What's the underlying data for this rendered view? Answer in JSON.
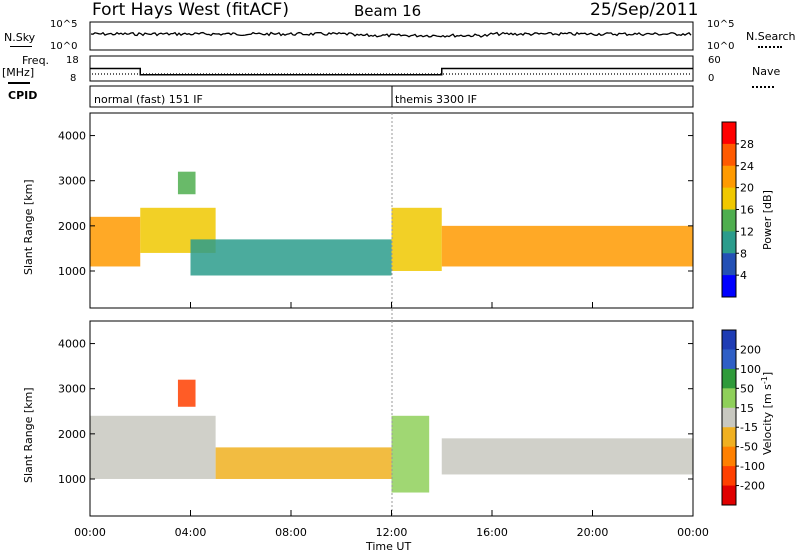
{
  "header": {
    "station": "Fort Hays West (fitACF)",
    "beam": "Beam 16",
    "date": "25/Sep/2011"
  },
  "left_labels": {
    "nsky": "N.Sky",
    "freq": "Freq.",
    "freq_unit": "[MHz]",
    "cpid": "CPID"
  },
  "right_labels": {
    "nsearch": "N.Search",
    "nave": "Nave"
  },
  "noise_axis": {
    "left_ticks": [
      "10^5",
      "10^0"
    ],
    "right_ticks": [
      "10^5",
      "10^0"
    ]
  },
  "freq_axis": {
    "left_ticks": [
      "18",
      "8"
    ],
    "right_ticks": [
      "60",
      "0"
    ]
  },
  "cpid_modes": [
    {
      "name": "normal (fast) 151 IF",
      "start_hour": 0,
      "end_hour": 12
    },
    {
      "name": "themis 3300 IF",
      "start_hour": 12,
      "end_hour": 24
    }
  ],
  "x_axis": {
    "label": "Time UT",
    "ticks": [
      "00:00",
      "04:00",
      "08:00",
      "12:00",
      "16:00",
      "20:00",
      "00:00"
    ]
  },
  "power_panel": {
    "ylabel": "Slant Range [km]",
    "yticks": [
      "1000",
      "2000",
      "3000",
      "4000"
    ]
  },
  "velocity_panel": {
    "ylabel": "Slant Range [km]",
    "yticks": [
      "1000",
      "2000",
      "3000",
      "4000"
    ]
  },
  "power_colorbar": {
    "label": "Power [dB]",
    "ticks": [
      "28",
      "24",
      "20",
      "16",
      "12",
      "8",
      "4"
    ],
    "colors": [
      "#ff0000",
      "#ff5a00",
      "#ff9a00",
      "#f0c800",
      "#4fae4f",
      "#2b9c8c",
      "#2350b5",
      "#0000ff"
    ]
  },
  "velocity_colorbar": {
    "label": "Velocity [m s",
    "label_sup": "-1",
    "label_end": "]",
    "ticks": [
      "200",
      "100",
      "50",
      "15",
      "-15",
      "-50",
      "-100",
      "-200"
    ],
    "colors": [
      "#1e3cb4",
      "#2f5fc6",
      "#2f9a3a",
      "#8fd05a",
      "#c8c8c0",
      "#f0b020",
      "#ff8000",
      "#ff4000",
      "#e00000"
    ]
  },
  "chart_data": {
    "type": "heatmap",
    "title": "Fort Hays West (fitACF)",
    "xlabel": "Time UT",
    "ylabel": "Slant Range [km]",
    "xlim": [
      0,
      24
    ],
    "ylim": [
      180,
      4500
    ],
    "freq_mhz": [
      {
        "start_hour": 0,
        "end_hour": 2,
        "value": 13
      },
      {
        "start_hour": 2,
        "end_hour": 14,
        "value": 10.5
      },
      {
        "start_hour": 14,
        "end_hour": 24,
        "value": 13
      }
    ],
    "power_db_bands": [
      {
        "t0": 0,
        "t1": 2,
        "r0": 1100,
        "r1": 2200,
        "power": 22
      },
      {
        "t0": 2,
        "t1": 5,
        "r0": 1400,
        "r1": 2400,
        "power": 18
      },
      {
        "t0": 4,
        "t1": 12,
        "r0": 900,
        "r1": 1700,
        "power": 10
      },
      {
        "t0": 12,
        "t1": 14,
        "r0": 1000,
        "r1": 2400,
        "power": 18
      },
      {
        "t0": 14,
        "t1": 24,
        "r0": 1100,
        "r1": 2000,
        "power": 20
      },
      {
        "t0": 3.5,
        "t1": 4.2,
        "r0": 2700,
        "r1": 3200,
        "power": 12
      }
    ],
    "velocity_bands": [
      {
        "t0": 0,
        "t1": 5,
        "r0": 1000,
        "r1": 2400,
        "velocity": 0
      },
      {
        "t0": 5,
        "t1": 12,
        "r0": 1000,
        "r1": 1700,
        "velocity": -30
      },
      {
        "t0": 12,
        "t1": 13.5,
        "r0": 700,
        "r1": 2400,
        "velocity": 40
      },
      {
        "t0": 14,
        "t1": 24,
        "r0": 1100,
        "r1": 1900,
        "velocity": 0
      },
      {
        "t0": 3.5,
        "t1": 4.2,
        "r0": 2600,
        "r1": 3200,
        "velocity": -200
      }
    ]
  }
}
